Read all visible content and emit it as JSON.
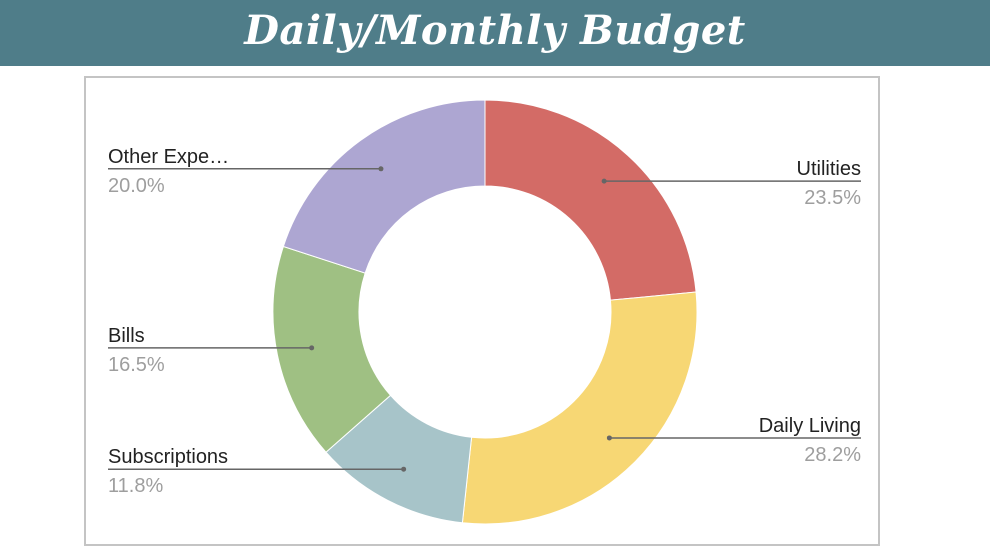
{
  "header": {
    "title": "Daily/Monthly Budget"
  },
  "colors": {
    "banner": "#4f7d89",
    "frame": "#c4c4c4",
    "leader": "#666666"
  },
  "chart_data": {
    "type": "pie",
    "style": "donut",
    "start_angle_deg": 0,
    "direction": "clockwise",
    "legend": "labeled",
    "slices": [
      {
        "label": "Utilities",
        "display": "Utilities",
        "percent_label": "23.5%",
        "value": 23.5,
        "color": "#d36b66",
        "side": "right"
      },
      {
        "label": "Daily Living",
        "display": "Daily Living",
        "percent_label": "28.2%",
        "value": 28.2,
        "color": "#f7d774",
        "side": "right"
      },
      {
        "label": "Subscriptions",
        "display": "Subscriptions",
        "percent_label": "11.8%",
        "value": 11.8,
        "color": "#a7c4c9",
        "side": "left"
      },
      {
        "label": "Bills",
        "display": "Bills",
        "percent_label": "16.5%",
        "value": 16.5,
        "color": "#9fc083",
        "side": "left"
      },
      {
        "label": "Other Expe…",
        "display": "Other Expe…",
        "percent_label": "20.0%",
        "value": 20.0,
        "color": "#ada6d2",
        "side": "left"
      }
    ]
  }
}
